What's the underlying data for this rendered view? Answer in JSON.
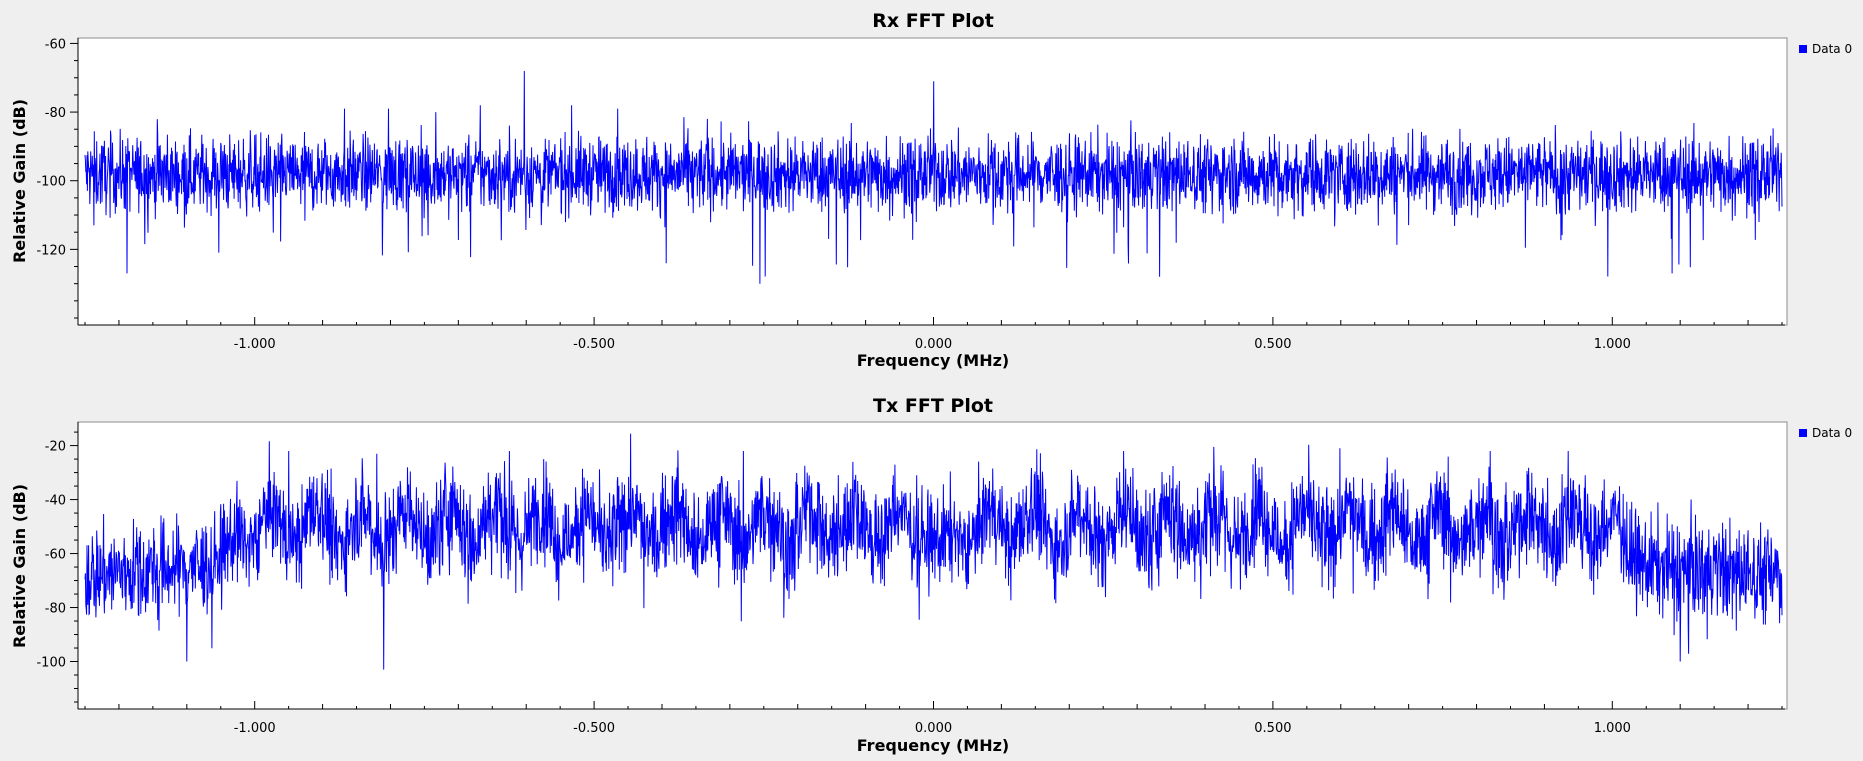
{
  "chart_data": [
    {
      "type": "line",
      "title": "Rx FFT Plot",
      "xlabel": "Frequency (MHz)",
      "ylabel": "Relative Gain (dB)",
      "xlim": [
        -1.25,
        1.25
      ],
      "ylim": [
        -140,
        -59
      ],
      "x_ticks": [
        -1.0,
        -0.5,
        0.0,
        0.5,
        1.0
      ],
      "x_tick_labels": [
        "-1.000",
        "-0.500",
        "0.000",
        "0.500",
        "1.000"
      ],
      "y_ticks": [
        -60,
        -80,
        -100,
        -120
      ],
      "y_tick_labels": [
        "-60",
        "-80",
        "-100",
        "-120"
      ],
      "grid": false,
      "legend": {
        "position": "top-right",
        "entries": [
          "Data 0"
        ]
      },
      "series": [
        {
          "name": "Data 0",
          "color": "#0000ff",
          "profile": {
            "x": [
              -1.25,
              1.25
            ],
            "y": [
              -98,
              -98
            ]
          },
          "peaks": [
            {
              "x": -0.868,
              "y": -79
            },
            {
              "x": -0.803,
              "y": -79
            },
            {
              "x": -0.733,
              "y": -80
            },
            {
              "x": -0.668,
              "y": -78
            },
            {
              "x": -0.603,
              "y": -68
            },
            {
              "x": -0.533,
              "y": -78
            },
            {
              "x": -0.465,
              "y": -79
            },
            {
              "x": -0.333,
              "y": -82
            },
            {
              "x": 0.0,
              "y": -71
            }
          ],
          "dips": [
            {
              "x": -1.188,
              "y": -127
            },
            {
              "x": -0.256,
              "y": -130
            },
            {
              "x": 0.333,
              "y": -128
            },
            {
              "x": 1.088,
              "y": -127
            }
          ]
        }
      ]
    },
    {
      "type": "line",
      "title": "Tx FFT Plot",
      "xlabel": "Frequency (MHz)",
      "ylabel": "Relative Gain (dB)",
      "xlim": [
        -1.25,
        1.25
      ],
      "ylim": [
        -115,
        -12
      ],
      "x_ticks": [
        -1.0,
        -0.5,
        0.0,
        0.5,
        1.0
      ],
      "x_tick_labels": [
        "-1.000",
        "-0.500",
        "0.000",
        "0.500",
        "1.000"
      ],
      "y_ticks": [
        -20,
        -40,
        -60,
        -80,
        -100
      ],
      "y_tick_labels": [
        "-20",
        "-40",
        "-60",
        "-80",
        "-100"
      ],
      "grid": false,
      "legend": {
        "position": "top-right",
        "entries": [
          "Data 0"
        ]
      },
      "series": [
        {
          "name": "Data 0",
          "color": "#0000ff",
          "profile": {
            "x": [
              -1.25,
              -1.06,
              -1.02,
              -0.05,
              0.0,
              0.05,
              1.0,
              1.04,
              1.25
            ],
            "y": [
              -68,
              -64,
              -50,
              -50,
              -56,
              -50,
              -50,
              -64,
              -68
            ]
          },
          "peaks": [
            {
              "x": -0.95,
              "y": -22
            },
            {
              "x": -0.82,
              "y": -23
            },
            {
              "x": -0.625,
              "y": -22
            },
            {
              "x": -0.28,
              "y": -22
            },
            {
              "x": 0.28,
              "y": -22
            },
            {
              "x": 0.82,
              "y": -22
            },
            {
              "x": 0.935,
              "y": -22
            }
          ],
          "dips": [
            {
              "x": -0.81,
              "y": -103
            },
            {
              "x": -1.1,
              "y": -100
            },
            {
              "x": 1.1,
              "y": -100
            }
          ]
        }
      ]
    }
  ]
}
